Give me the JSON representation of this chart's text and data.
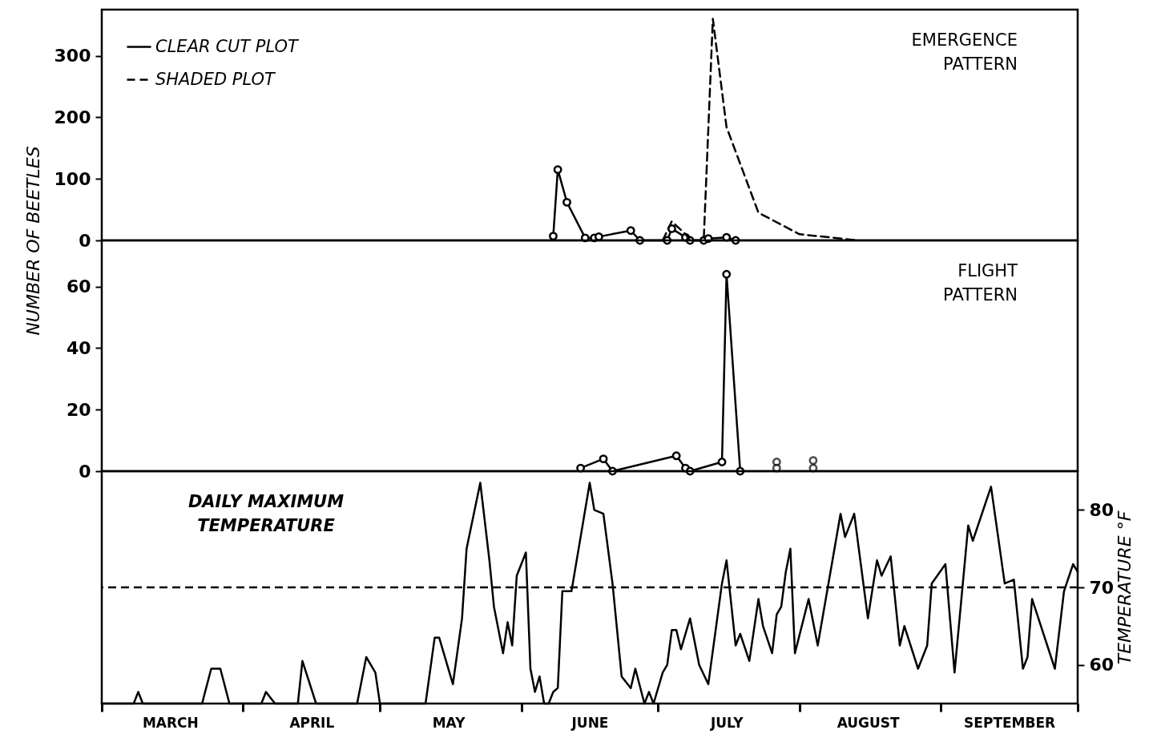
{
  "chart_data": [
    {
      "type": "line",
      "ylabel": "NUMBER OF BEETLES",
      "annotations": [
        "EMERGENCE\nPATTERN"
      ],
      "xlim": [
        "--03-01",
        "--10-01"
      ],
      "ylim": [
        0,
        375
      ],
      "yticks": [
        0,
        100,
        200,
        300
      ],
      "tick_labels": "y",
      "legend": "top left",
      "series": [
        {
          "name": "CLEAR CUT PLOT",
          "color": "#000000",
          "marker": "circle",
          "line_style": "solid",
          "x": [
            "--06-08",
            "--06-09",
            "--06-11",
            "--06-15",
            "--06-17",
            "--06-18",
            "--06-25",
            "--06-27",
            "--07-03",
            "--07-04",
            "--07-07",
            "--07-08",
            "--07-11",
            "--07-12",
            "--07-16",
            "--07-18"
          ],
          "values": [
            7,
            115,
            62,
            4,
            4,
            6,
            16,
            0,
            0,
            19,
            5,
            0,
            0,
            3,
            5,
            0
          ]
        },
        {
          "name": "SHADED PLOT",
          "color": "#000000",
          "marker": "none",
          "line_style": "dashed",
          "x": [
            "--07-02",
            "--07-04",
            "--07-07",
            "--07-08",
            "--07-11",
            "--07-13",
            "--07-16",
            "--07-23",
            "--08-01",
            "--08-14"
          ],
          "values": [
            0,
            31,
            10,
            0,
            0,
            360,
            184,
            45,
            10,
            0
          ]
        }
      ]
    },
    {
      "type": "line",
      "annotations": [
        "FLIGHT\nPATTERN"
      ],
      "xlim": [
        "--03-01",
        "--10-01"
      ],
      "ylim": [
        0,
        75
      ],
      "yticks": [
        0,
        20,
        40,
        60
      ],
      "tick_labels": "y",
      "series": [
        {
          "color": "#000000",
          "marker": "circle",
          "line_style": "solid",
          "x": [
            "--06-14",
            "--06-19",
            "--06-21",
            "--07-05",
            "--07-07",
            "--07-08",
            "--07-15",
            "--07-16",
            "--07-19"
          ],
          "values": [
            1,
            4,
            0,
            5,
            1,
            0,
            3,
            64,
            0
          ]
        },
        {
          "type": "scatter",
          "color": "#000000",
          "marker": "circle",
          "x": [
            "--07-27",
            "--07-27",
            "--08-04",
            "--08-04"
          ],
          "values": [
            3,
            1,
            3.5,
            1
          ]
        }
      ]
    },
    {
      "type": "line",
      "y2label": "TEMPERATURE °F",
      "annotations": [
        "DAILY  MAXIMUM\nTEMPERATURE"
      ],
      "xlim": [
        "--03-01",
        "--10-01"
      ],
      "y2lim": [
        55,
        85
      ],
      "y2ticks": [
        60,
        70,
        80
      ],
      "xticks": [
        {
          "value": "--03-01",
          "label": null
        },
        {
          "value": "--03-16",
          "label": "MARCH"
        },
        {
          "value": "--04-01",
          "label": null
        },
        {
          "value": "--04-16",
          "label": "APRIL"
        },
        {
          "value": "--05-01",
          "label": null
        },
        {
          "value": "--05-16",
          "label": "MAY"
        },
        {
          "value": "--06-01",
          "label": null
        },
        {
          "value": "--06-16",
          "label": "JUNE"
        },
        {
          "value": "--07-01",
          "label": null
        },
        {
          "value": "--07-16",
          "label": "JULY"
        },
        {
          "value": "--08-01",
          "label": null
        },
        {
          "value": "--08-16",
          "label": "AUGUST"
        },
        {
          "value": "--09-01",
          "label": null
        },
        {
          "value": "--09-16",
          "label": "SEPTEMBER"
        },
        {
          "value": "--10-01",
          "label": null
        }
      ],
      "ref_lines": [
        {
          "axis": "y2",
          "value": 70,
          "line_style": "dashed",
          "color": "#000000"
        }
      ],
      "series": [
        {
          "color": "#000000",
          "axis": "y2",
          "line_style": "solid",
          "x": [
            "--03-01",
            "--03-08",
            "--03-09",
            "--03-10",
            "--03-23",
            "--03-25",
            "--03-27",
            "--03-29",
            "--04-05",
            "--04-06",
            "--04-08",
            "--04-13",
            "--04-14",
            "--04-17",
            "--04-26",
            "--04-28",
            "--04-30",
            "--05-01",
            "--05-11",
            "--05-13",
            "--05-14",
            "--05-17",
            "--05-19",
            "--05-20",
            "--05-23",
            "--05-25",
            "--05-26",
            "--05-28",
            "--05-29",
            "--05-30",
            "--05-31",
            "--06-02",
            "--06-03",
            "--06-04",
            "--06-05",
            "--06-06",
            "--06-07",
            "--06-08",
            "--06-09",
            "--06-10",
            "--06-11",
            "--06-12",
            "--06-16",
            "--06-17",
            "--06-19",
            "--06-21",
            "--06-23",
            "--06-25",
            "--06-26",
            "--06-28",
            "--06-29",
            "--06-30",
            "--07-02",
            "--07-03",
            "--07-04",
            "--07-05",
            "--07-06",
            "--07-08",
            "--07-10",
            "--07-12",
            "--07-15",
            "--07-16",
            "--07-18",
            "--07-19",
            "--07-21",
            "--07-23",
            "--07-24",
            "--07-26",
            "--07-27",
            "--07-28",
            "--07-29",
            "--07-30",
            "--07-31",
            "--08-03",
            "--08-05",
            "--08-10",
            "--08-11",
            "--08-13",
            "--08-16",
            "--08-18",
            "--08-19",
            "--08-21",
            "--08-23",
            "--08-24",
            "--08-27",
            "--08-29",
            "--08-30",
            "--09-02",
            "--09-04",
            "--09-07",
            "--09-08",
            "--09-12",
            "--09-15",
            "--09-17",
            "--09-19",
            "--09-20",
            "--09-21",
            "--09-26",
            "--09-28",
            "--09-30",
            "--10-01"
          ],
          "values": [
            55,
            55,
            56.5,
            55,
            55,
            59.5,
            59.5,
            55,
            55,
            56.5,
            55,
            55,
            60.5,
            55,
            55,
            61,
            59,
            55,
            55,
            63.5,
            63.5,
            57.5,
            66,
            75,
            83.5,
            73.5,
            67.5,
            61.5,
            65.5,
            62.5,
            71.5,
            74.5,
            59.5,
            56.5,
            58.5,
            55,
            55,
            56.5,
            57,
            69.5,
            69.5,
            69.5,
            83.5,
            80,
            79.5,
            70.5,
            58.5,
            57,
            59.5,
            55,
            56.5,
            55,
            59,
            60,
            64.5,
            64.5,
            62,
            66,
            60,
            57.5,
            70.5,
            73.5,
            62.5,
            64,
            60.5,
            68.5,
            65,
            61.5,
            66.5,
            67.5,
            72,
            75,
            61.5,
            68.5,
            62.5,
            79.5,
            76.5,
            79.5,
            66,
            73.5,
            71.5,
            74,
            62.5,
            65,
            59.5,
            62.5,
            70.5,
            73,
            59,
            78,
            76,
            83,
            70.5,
            71,
            59.5,
            61,
            68.5,
            59.5,
            69.5,
            73,
            72
          ]
        }
      ]
    }
  ]
}
